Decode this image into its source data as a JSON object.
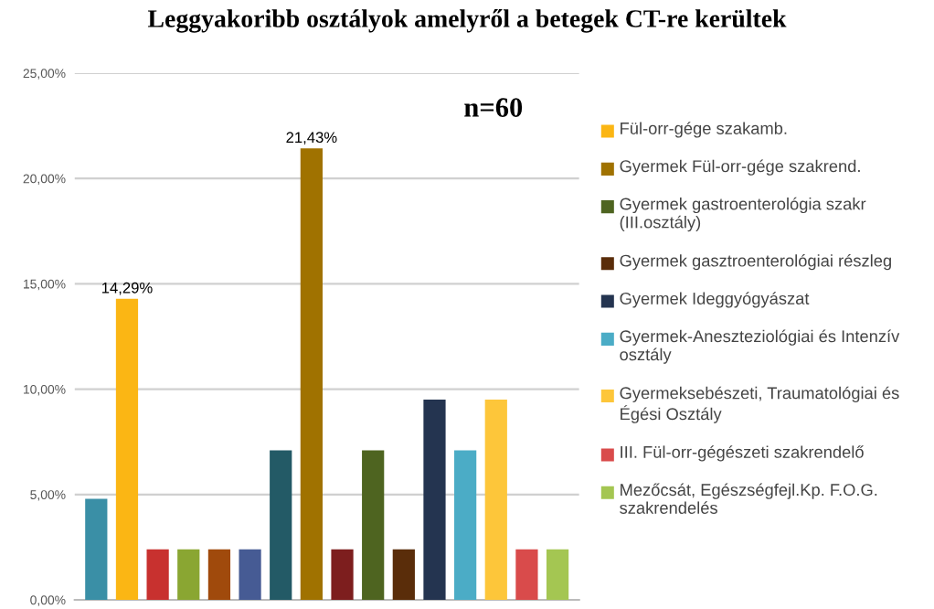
{
  "chart_data": {
    "type": "bar",
    "title": "Leggyakoribb osztályok amelyről a betegek CT-re kerültek",
    "annotations": [
      "n=60"
    ],
    "categories": [
      null,
      null,
      null,
      null,
      null,
      null,
      null,
      null,
      null,
      null,
      null,
      null,
      null,
      null,
      null,
      null
    ],
    "series": [
      {
        "color": "#3a8fa6",
        "values": [
          4.8,
          null,
          null,
          null,
          null,
          null,
          null,
          null,
          null,
          null,
          null,
          null,
          null,
          null,
          null,
          null
        ]
      },
      {
        "name": "Fül-orr-gége szakamb.",
        "color": "#fbb614",
        "values": [
          null,
          14.29,
          null,
          null,
          null,
          null,
          null,
          null,
          null,
          null,
          null,
          null,
          null,
          null,
          null,
          null
        ],
        "value_labels": [
          null,
          "14,29%",
          null,
          null,
          null,
          null,
          null,
          null,
          null,
          null,
          null,
          null,
          null,
          null,
          null,
          null
        ]
      },
      {
        "color": "#c8312f",
        "values": [
          null,
          null,
          2.4,
          null,
          null,
          null,
          null,
          null,
          null,
          null,
          null,
          null,
          null,
          null,
          null,
          null
        ]
      },
      {
        "color": "#8aa632",
        "values": [
          null,
          null,
          null,
          2.4,
          null,
          null,
          null,
          null,
          null,
          null,
          null,
          null,
          null,
          null,
          null,
          null
        ]
      },
      {
        "color": "#a04a0c",
        "values": [
          null,
          null,
          null,
          null,
          2.4,
          null,
          null,
          null,
          null,
          null,
          null,
          null,
          null,
          null,
          null,
          null
        ]
      },
      {
        "color": "#465b94",
        "values": [
          null,
          null,
          null,
          null,
          null,
          2.4,
          null,
          null,
          null,
          null,
          null,
          null,
          null,
          null,
          null,
          null
        ]
      },
      {
        "color": "#235a66",
        "values": [
          null,
          null,
          null,
          null,
          null,
          null,
          7.1,
          null,
          null,
          null,
          null,
          null,
          null,
          null,
          null,
          null
        ]
      },
      {
        "name": "Gyermek Fül-orr-gége szakrend.",
        "color": "#a07200",
        "values": [
          null,
          null,
          null,
          null,
          null,
          null,
          null,
          21.43,
          null,
          null,
          null,
          null,
          null,
          null,
          null,
          null
        ],
        "value_labels": [
          null,
          null,
          null,
          null,
          null,
          null,
          null,
          "21,43%",
          null,
          null,
          null,
          null,
          null,
          null,
          null,
          null
        ]
      },
      {
        "color": "#7d1e1e",
        "values": [
          null,
          null,
          null,
          null,
          null,
          null,
          null,
          null,
          2.4,
          null,
          null,
          null,
          null,
          null,
          null,
          null
        ]
      },
      {
        "name": "Gyermek gastroenterológia szakr (III.osztály)",
        "color": "#4e6420",
        "values": [
          null,
          null,
          null,
          null,
          null,
          null,
          null,
          null,
          null,
          7.1,
          null,
          null,
          null,
          null,
          null,
          null
        ]
      },
      {
        "name": "Gyermek gasztroenterológiai részleg",
        "color": "#5a2d0a",
        "values": [
          null,
          null,
          null,
          null,
          null,
          null,
          null,
          null,
          null,
          null,
          2.4,
          null,
          null,
          null,
          null,
          null
        ]
      },
      {
        "name": "Gyermek Ideggyógyászat",
        "color": "#243450",
        "values": [
          null,
          null,
          null,
          null,
          null,
          null,
          null,
          null,
          null,
          null,
          null,
          9.5,
          null,
          null,
          null,
          null
        ]
      },
      {
        "name": "Gyermek-Aneszteziológiai és Intenzív osztály",
        "color": "#4bacc6",
        "values": [
          null,
          null,
          null,
          null,
          null,
          null,
          null,
          null,
          null,
          null,
          null,
          null,
          7.1,
          null,
          null,
          null
        ]
      },
      {
        "name": "Gyermeksebészeti, Traumatológiai és Égési Osztály",
        "color": "#fdc63a",
        "values": [
          null,
          null,
          null,
          null,
          null,
          null,
          null,
          null,
          null,
          null,
          null,
          null,
          null,
          9.5,
          null,
          null
        ]
      },
      {
        "name": "III. Fül-orr-gégészeti szakrendelő",
        "color": "#d94b4b",
        "values": [
          null,
          null,
          null,
          null,
          null,
          null,
          null,
          null,
          null,
          null,
          null,
          null,
          null,
          null,
          2.4,
          null
        ]
      },
      {
        "name": "Mezőcsát, Egészségfejl.Kp. F.O.G. szakrendelés",
        "color": "#a4c652",
        "values": [
          null,
          null,
          null,
          null,
          null,
          null,
          null,
          null,
          null,
          null,
          null,
          null,
          null,
          null,
          null,
          2.4
        ]
      }
    ],
    "ylim": [
      0,
      25
    ],
    "yticks": [
      {
        "value": 0,
        "label": "0,00%"
      },
      {
        "value": 5,
        "label": "5,00%"
      },
      {
        "value": 10,
        "label": "10,00%"
      },
      {
        "value": 15,
        "label": "15,00%"
      },
      {
        "value": 20,
        "label": "20,00%"
      },
      {
        "value": 25,
        "label": "25,00%"
      }
    ],
    "grid": "y",
    "legend": "right"
  }
}
